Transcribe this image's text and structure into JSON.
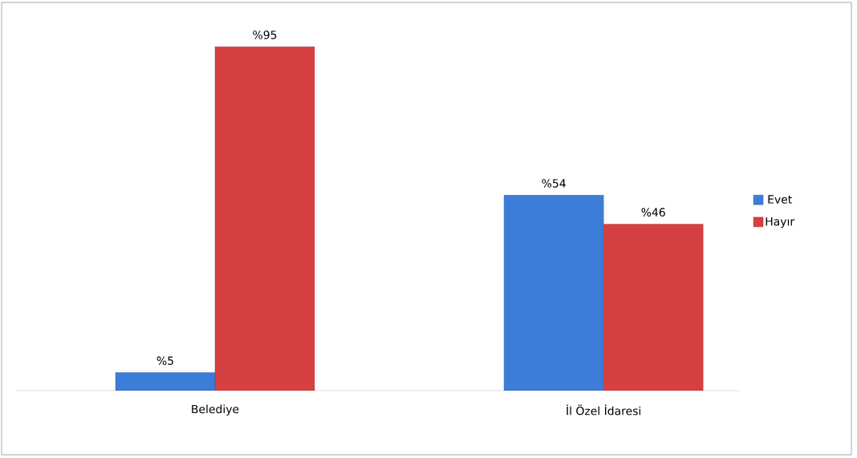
{
  "chart_data": {
    "type": "bar",
    "categories": [
      "Belediye",
      "İl Özel İdaresi"
    ],
    "series": [
      {
        "name": "Evet",
        "color": "#3c7dd9",
        "values": [
          5,
          54
        ],
        "value_labels": [
          "%5",
          "%54"
        ]
      },
      {
        "name": "Hayır",
        "color": "#d64040",
        "values": [
          95,
          46
        ],
        "value_labels": [
          "%95",
          "%46"
        ]
      }
    ],
    "legend": "right"
  }
}
